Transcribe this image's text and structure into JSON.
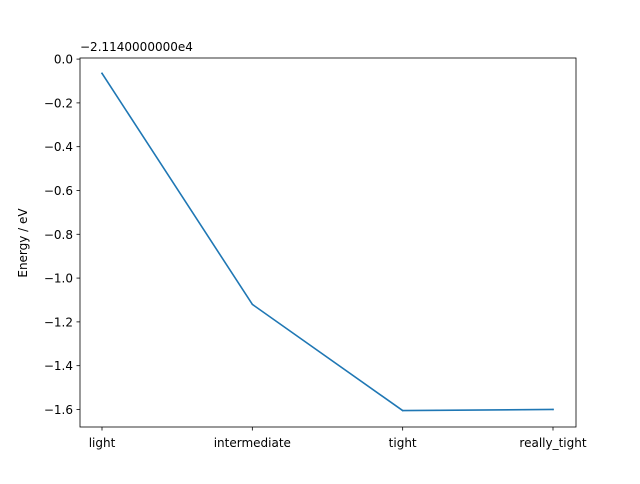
{
  "chart_data": {
    "type": "line",
    "categories": [
      "light",
      "intermediate",
      "tight",
      "really_tight"
    ],
    "series": [
      {
        "values": [
          -0.065,
          -1.12,
          -1.605,
          -1.6
        ]
      }
    ],
    "offset_label": "−2.1140000000e4",
    "xlabel": "",
    "ylabel": "Energy / eV",
    "ylim": [
      -1.68,
      0.005
    ],
    "yticks": [
      0.0,
      -0.2,
      -0.4,
      -0.6,
      -0.8,
      -1.0,
      -1.2,
      -1.4,
      -1.6
    ],
    "ytick_labels": [
      "0.0",
      "−0.2",
      "−0.4",
      "−0.6",
      "−0.8",
      "−1.0",
      "−1.2",
      "−1.4",
      "−1.6"
    ],
    "grid": false,
    "line_color": "#1f77b4"
  }
}
